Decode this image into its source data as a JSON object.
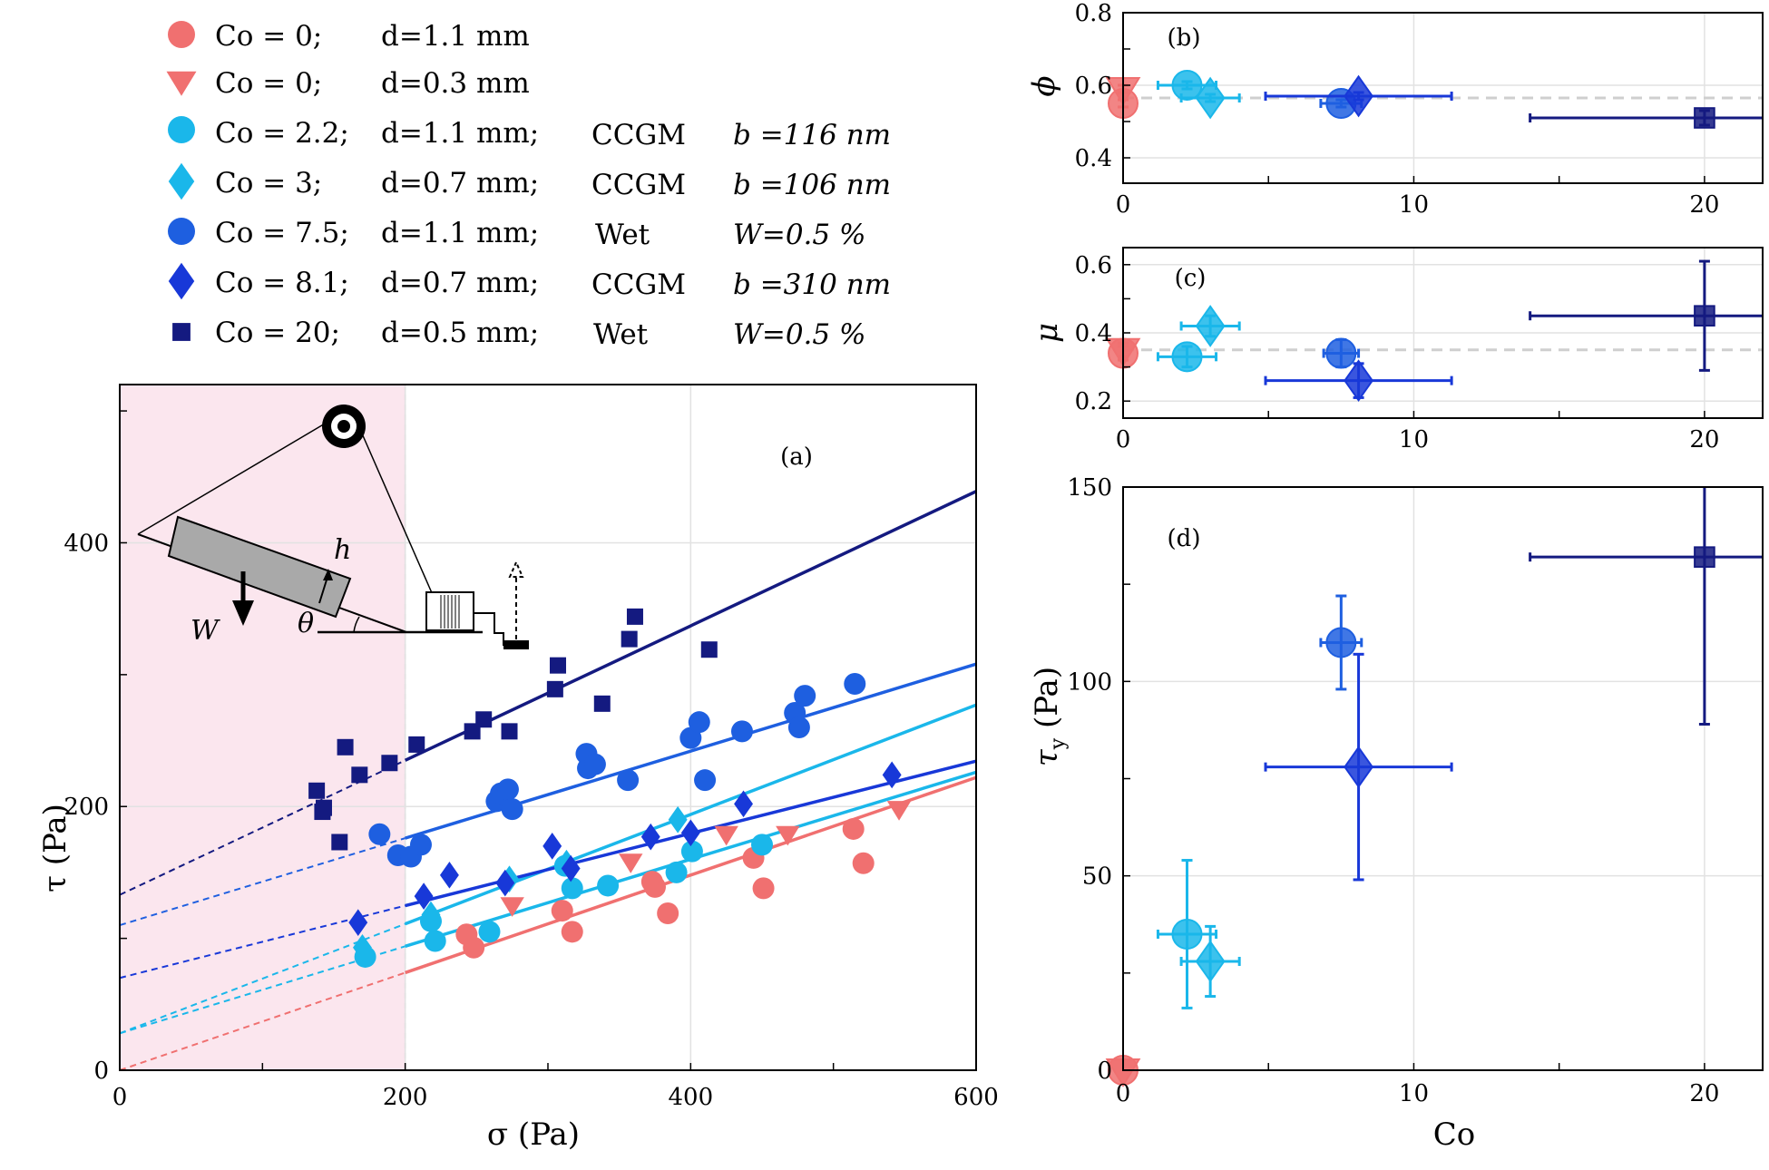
{
  "legend": [
    {
      "id": "s1",
      "marker": "circle",
      "co": "Co = 0;",
      "d": "d=1.1 mm",
      "method": "",
      "param": ""
    },
    {
      "id": "s2",
      "marker": "triangle",
      "co": "Co = 0;",
      "d": "d=0.3 mm",
      "method": "",
      "param": ""
    },
    {
      "id": "s3",
      "marker": "circle",
      "co": "Co = 2.2;",
      "d": "d=1.1 mm;",
      "method": "CCGM",
      "param": "b =116 nm"
    },
    {
      "id": "s4",
      "marker": "diamond",
      "co": "Co = 3;",
      "d": "d=0.7 mm;",
      "method": "CCGM",
      "param": "b =106 nm"
    },
    {
      "id": "s5",
      "marker": "circle",
      "co": "Co = 7.5;",
      "d": "d=1.1 mm;",
      "method": "Wet",
      "param": "W=0.5 %"
    },
    {
      "id": "s6",
      "marker": "diamond",
      "co": "Co = 8.1;",
      "d": "d=0.7 mm;",
      "method": "CCGM",
      "param": "b =310 nm"
    },
    {
      "id": "s7",
      "marker": "square",
      "co": "Co = 20;",
      "d": "d=0.5 mm;",
      "method": "Wet",
      "param": "W=0.5 %"
    }
  ],
  "colors": {
    "s1": "#f07070",
    "s2": "#f07070",
    "s3": "#1ab7ea",
    "s4": "#1ab7ea",
    "s5": "#1e5fe0",
    "s6": "#1838d8",
    "s7": "#141a80",
    "shade": "#fbe6ee",
    "grid": "#e2e2e2",
    "ref": "#cfcfcf"
  },
  "chart_data": [
    {
      "id": "a",
      "type": "scatter",
      "label": "(a)",
      "xlabel": "σ (Pa)",
      "ylabel": "τ (Pa)",
      "xlim": [
        0,
        600
      ],
      "ylim": [
        0,
        520
      ],
      "xticks": [
        0,
        200,
        400,
        600
      ],
      "yticks": [
        0,
        200,
        400
      ],
      "shaded_region": [
        0,
        200
      ],
      "series": [
        {
          "id": "s1",
          "points": [
            [
              243,
              103
            ],
            [
              248,
              93
            ],
            [
              310,
              121
            ],
            [
              317,
              105
            ],
            [
              373,
              143
            ],
            [
              375,
              139
            ],
            [
              384,
              119
            ],
            [
              444,
              161
            ],
            [
              451,
              138
            ],
            [
              514,
              183
            ],
            [
              521,
              157
            ]
          ]
        },
        {
          "id": "s2",
          "points": [
            [
              275,
              125
            ],
            [
              358,
              158
            ],
            [
              425,
              179
            ],
            [
              468,
              179
            ],
            [
              546,
              198
            ]
          ]
        },
        {
          "id": "s3",
          "points": [
            [
              172,
              86
            ],
            [
              218,
              113
            ],
            [
              221,
              98
            ],
            [
              259,
              105
            ],
            [
              312,
              155
            ],
            [
              317,
              138
            ],
            [
              342,
              140
            ],
            [
              390,
              150
            ],
            [
              401,
              166
            ],
            [
              450,
              171
            ]
          ]
        },
        {
          "id": "s4",
          "points": [
            [
              170,
              93
            ],
            [
              218,
              118
            ],
            [
              273,
              145
            ],
            [
              313,
              157
            ],
            [
              391,
              190
            ]
          ]
        },
        {
          "id": "s5",
          "points": [
            [
              182,
              179
            ],
            [
              195,
              163
            ],
            [
              204,
              162
            ],
            [
              211,
              171
            ],
            [
              264,
              204
            ],
            [
              267,
              210
            ],
            [
              272,
              213
            ],
            [
              275,
              198
            ],
            [
              327,
              240
            ],
            [
              328,
              229
            ],
            [
              333,
              232
            ],
            [
              356,
              220
            ],
            [
              400,
              252
            ],
            [
              406,
              264
            ],
            [
              410,
              220
            ],
            [
              436,
              257
            ],
            [
              473,
              271
            ],
            [
              476,
              260
            ],
            [
              480,
              284
            ],
            [
              515,
              293
            ]
          ]
        },
        {
          "id": "s6",
          "points": [
            [
              167,
              112
            ],
            [
              213,
              132
            ],
            [
              231,
              148
            ],
            [
              270,
              142
            ],
            [
              303,
              170
            ],
            [
              316,
              153
            ],
            [
              372,
              177
            ],
            [
              400,
              180
            ],
            [
              437,
              202
            ],
            [
              541,
              224
            ]
          ]
        },
        {
          "id": "s7",
          "points": [
            [
              138,
              212
            ],
            [
              142,
              196
            ],
            [
              143,
              199
            ],
            [
              154,
              173
            ],
            [
              158,
              245
            ],
            [
              168,
              224
            ],
            [
              189,
              233
            ],
            [
              208,
              247
            ],
            [
              247,
              257
            ],
            [
              255,
              266
            ],
            [
              273,
              257
            ],
            [
              305,
              289
            ],
            [
              307,
              307
            ],
            [
              338,
              278
            ],
            [
              357,
              327
            ],
            [
              361,
              344
            ],
            [
              413,
              319
            ]
          ]
        }
      ],
      "fits": [
        {
          "id": "s1",
          "intercept": 0,
          "slope": 0.37
        },
        {
          "id": "s3",
          "intercept": 28,
          "slope": 0.415
        },
        {
          "id": "s4",
          "intercept": 28,
          "slope": 0.33
        },
        {
          "id": "s6",
          "intercept": 70,
          "slope": 0.274
        },
        {
          "id": "s5",
          "intercept": 110,
          "slope": 0.33
        },
        {
          "id": "s7",
          "intercept": 133,
          "slope": 0.51
        }
      ],
      "inset_labels": {
        "weight": "W",
        "height": "h",
        "angle": "θ"
      }
    },
    {
      "id": "b",
      "type": "scatter",
      "label": "(b)",
      "ylabel": "ϕ",
      "xlim": [
        0,
        22
      ],
      "ylim": [
        0.33,
        0.8
      ],
      "xticks": [
        0,
        10,
        20
      ],
      "yticks": [
        0.4,
        0.6,
        0.8
      ],
      "reference": 0.565,
      "points": [
        {
          "id": "s1",
          "x": 0,
          "y": 0.55,
          "xerr": 0,
          "yerr": 0.01
        },
        {
          "id": "s2",
          "x": 0,
          "y": 0.59,
          "xerr": 0,
          "yerr": 0.01
        },
        {
          "id": "s3",
          "x": 2.2,
          "y": 0.6,
          "xerr": 1.0,
          "yerr": 0.01
        },
        {
          "id": "s4",
          "x": 3,
          "y": 0.565,
          "xerr": 1.0,
          "yerr": 0.01
        },
        {
          "id": "s5",
          "x": 7.5,
          "y": 0.55,
          "xerr": 0.7,
          "yerr": 0.01
        },
        {
          "id": "s6",
          "x": 8.1,
          "y": 0.57,
          "xerr": 3.2,
          "yerr": 0.01
        },
        {
          "id": "s7",
          "x": 20,
          "y": 0.51,
          "xerr": 6,
          "yerr": 0.02
        }
      ]
    },
    {
      "id": "c",
      "type": "scatter",
      "label": "(c)",
      "ylabel": "μ",
      "xlim": [
        0,
        22
      ],
      "ylim": [
        0.15,
        0.65
      ],
      "xticks": [
        0,
        10,
        20
      ],
      "yticks": [
        0.2,
        0.4,
        0.6
      ],
      "reference": 0.35,
      "points": [
        {
          "id": "s1",
          "x": 0,
          "y": 0.34,
          "xerr": 0,
          "yerr": 0.02
        },
        {
          "id": "s2",
          "x": 0,
          "y": 0.35,
          "xerr": 0,
          "yerr": 0.02
        },
        {
          "id": "s3",
          "x": 2.2,
          "y": 0.33,
          "xerr": 1.0,
          "yerr": 0.03
        },
        {
          "id": "s4",
          "x": 3,
          "y": 0.42,
          "xerr": 1.0,
          "yerr": 0.03
        },
        {
          "id": "s5",
          "x": 7.5,
          "y": 0.34,
          "xerr": 0.6,
          "yerr": 0.04
        },
        {
          "id": "s6",
          "x": 8.1,
          "y": 0.26,
          "xerr": 3.2,
          "yerr": 0.05
        },
        {
          "id": "s7",
          "x": 20,
          "y": 0.45,
          "xerr": 6,
          "yerr": 0.16
        }
      ]
    },
    {
      "id": "d",
      "type": "scatter",
      "label": "(d)",
      "xlabel": "Co",
      "ylabel": "τ",
      "ylabel_sub": "y",
      "ylabel_unit": " (Pa)",
      "xlim": [
        0,
        22
      ],
      "ylim": [
        0,
        150
      ],
      "xticks": [
        0,
        10,
        20
      ],
      "yticks": [
        0,
        50,
        100,
        150
      ],
      "points": [
        {
          "id": "s1",
          "x": 0,
          "y": 0,
          "xerr": 0,
          "yerr": 0
        },
        {
          "id": "s2",
          "x": 0,
          "y": 0,
          "xerr": 0,
          "yerr": 0
        },
        {
          "id": "s3",
          "x": 2.2,
          "y": 35,
          "xerr": 1.0,
          "yerr": 19
        },
        {
          "id": "s4",
          "x": 3,
          "y": 28,
          "xerr": 1.0,
          "yerr": 9
        },
        {
          "id": "s5",
          "x": 7.5,
          "y": 110,
          "xerr": 0.7,
          "yerr": 12
        },
        {
          "id": "s6",
          "x": 8.1,
          "y": 78,
          "xerr": 3.2,
          "yerr": 29
        },
        {
          "id": "s7",
          "x": 20,
          "y": 132,
          "xerr": 6,
          "yerr": 43
        }
      ]
    }
  ]
}
